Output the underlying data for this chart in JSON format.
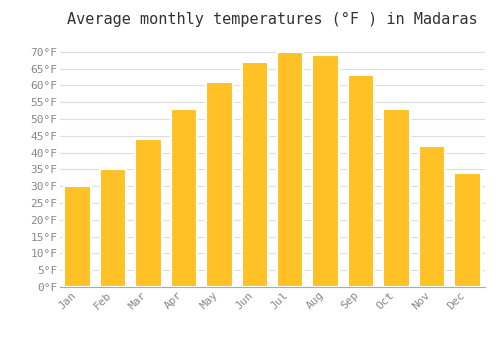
{
  "title": "Average monthly temperatures (°F ) in Madaras",
  "months": [
    "Jan",
    "Feb",
    "Mar",
    "Apr",
    "May",
    "Jun",
    "Jul",
    "Aug",
    "Sep",
    "Oct",
    "Nov",
    "Dec"
  ],
  "values": [
    30,
    35,
    44,
    53,
    61,
    67,
    70,
    69,
    63,
    53,
    42,
    34
  ],
  "bar_color": "#FFC125",
  "bar_edge_color": "#FFFFFF",
  "background_color": "#FFFFFF",
  "grid_color": "#DDDDDD",
  "ylim": [
    0,
    75
  ],
  "yticks": [
    0,
    5,
    10,
    15,
    20,
    25,
    30,
    35,
    40,
    45,
    50,
    55,
    60,
    65,
    70
  ],
  "title_fontsize": 11,
  "tick_fontsize": 8,
  "tick_label_color": "#888888",
  "font_family": "monospace",
  "bar_width": 0.75
}
